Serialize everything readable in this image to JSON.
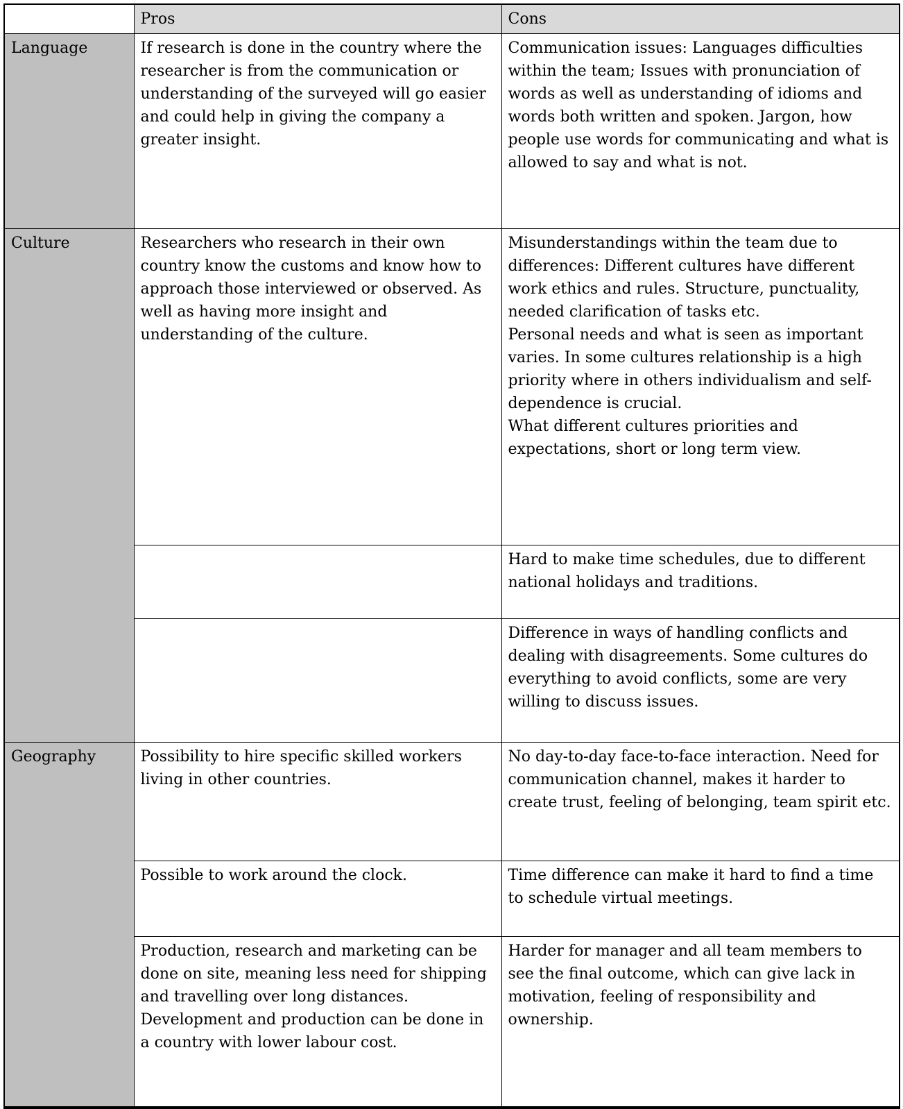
{
  "header": {
    "pros": "Pros",
    "cons": "Cons"
  },
  "rows": {
    "language": {
      "label": "Language",
      "pros": "If research is done in the country where the researcher is from the communication or understanding of the surveyed will go easier and could help in giving the company a greater insight.",
      "cons": "Communication issues: Languages difficulties within the team; Issues with pronunciation of words as well as understanding of idioms and words both written and spoken. Jargon, how people use words for communicating and what is allowed to say and what is not."
    },
    "culture": {
      "label": "Culture",
      "pros": "Researchers who research in their own country know the customs and know how to approach those interviewed or observed. As well as having more insight and understanding of the culture.",
      "pros2": "",
      "pros3": "",
      "cons1": "Misunderstandings within the team due to differences: Different cultures have different work ethics and rules. Structure, punctuality, needed clarification of tasks etc.\nPersonal needs and what is seen as important varies. In some cultures relationship is a high priority where in others individualism and self-dependence is crucial.\nWhat different cultures priorities and expectations, short or long term view.",
      "cons2": "Hard to make time schedules, due to different national holidays and traditions.",
      "cons3": "Difference in ways of handling conflicts and dealing with disagreements. Some cultures do everything to avoid conflicts, some are very willing to discuss issues."
    },
    "geography": {
      "label": "Geography",
      "pros1": "Possibility to hire specific skilled workers living in other countries.",
      "cons1": "No day-to-day face-to-face interaction. Need for communication channel, makes it harder to create trust, feeling of belonging, team spirit etc.",
      "pros2": "Possible to work around the clock.",
      "cons2": "Time difference can make it hard to find a time to schedule virtual meetings.",
      "pros3": "Production, research and marketing can be done on site, meaning less need for shipping and travelling over long distances. Development and production can be done in a country with lower labour cost.",
      "cons3": "Harder for manager and all team members to see the final outcome, which can give lack in motivation, feeling of responsibility and ownership."
    }
  },
  "colors": {
    "label_column_bg": "#bfbfbf",
    "header_bg": "#d9d9d9",
    "border": "#000000",
    "text": "#000000",
    "page_bg": "#ffffff"
  }
}
